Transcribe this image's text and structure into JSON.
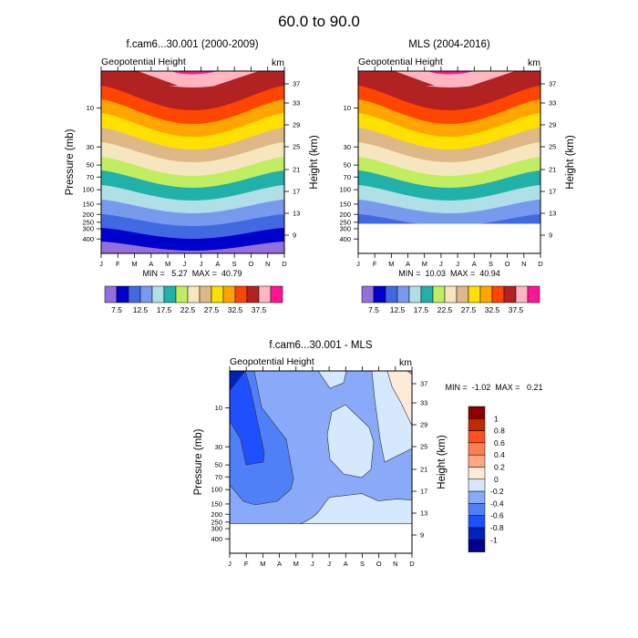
{
  "figure_title": "60.0 to  90.0",
  "chart_data": [
    {
      "type": "heatmap",
      "subtype": "filled-contour",
      "title": "f.cam6...30.001 (2000-2009)",
      "left_string": "Geopotential Height",
      "right_string": "km",
      "xlabel": "",
      "ylabel": "Pressure (mb)",
      "ylabel_right": "Height (km)",
      "x_ticks": [
        "J",
        "F",
        "M",
        "A",
        "M",
        "J",
        "J",
        "A",
        "S",
        "O",
        "N",
        "D"
      ],
      "y_ticks": [
        "10",
        "30",
        "50",
        "70",
        "100",
        "150",
        "200",
        "250",
        "300",
        "400"
      ],
      "y_ticks_right": [
        "37",
        "33",
        "29",
        "25",
        "21",
        "17",
        "13",
        "9"
      ],
      "stats": "MIN =   5.27  MAX =  40.79",
      "min": 5.27,
      "max": 40.79,
      "data_bottom_pressure": 500,
      "colorbar": {
        "colors": [
          "#9370db",
          "#0000cd",
          "#4169e1",
          "#7799ee",
          "#b0e0e6",
          "#20b2aa",
          "#c0ee60",
          "#f5e6c0",
          "#deb887",
          "#ffe000",
          "#ffa500",
          "#ff4500",
          "#b22222",
          "#ffb6c1",
          "#ff1493"
        ],
        "levels": [
          5,
          7.5,
          10,
          12.5,
          15,
          17.5,
          20,
          22.5,
          25,
          27.5,
          30,
          32.5,
          35,
          37.5,
          40
        ],
        "labels": [
          "7.5",
          "12.5",
          "17.5",
          "22.5",
          "27.5",
          "32.5",
          "37.5"
        ]
      }
    },
    {
      "type": "heatmap",
      "subtype": "filled-contour",
      "title": "MLS (2004-2016)",
      "left_string": "Geopotential Height",
      "right_string": "km",
      "xlabel": "",
      "ylabel": "",
      "ylabel_right": "Height (km)",
      "x_ticks": [
        "J",
        "F",
        "M",
        "A",
        "M",
        "J",
        "J",
        "A",
        "S",
        "O",
        "N",
        "D"
      ],
      "y_ticks": [
        "10",
        "30",
        "50",
        "70",
        "100",
        "150",
        "200",
        "250",
        "300",
        "400"
      ],
      "y_ticks_right": [
        "37",
        "33",
        "29",
        "25",
        "21",
        "17",
        "13",
        "9"
      ],
      "stats": "MIN =  10.03  MAX =  40.94",
      "min": 10.03,
      "max": 40.94,
      "data_bottom_pressure": 261,
      "colorbar": {
        "colors": [
          "#9370db",
          "#0000cd",
          "#4169e1",
          "#7799ee",
          "#b0e0e6",
          "#20b2aa",
          "#c0ee60",
          "#f5e6c0",
          "#deb887",
          "#ffe000",
          "#ffa500",
          "#ff4500",
          "#b22222",
          "#ffb6c1",
          "#ff1493"
        ],
        "levels": [
          5,
          7.5,
          10,
          12.5,
          15,
          17.5,
          20,
          22.5,
          25,
          27.5,
          30,
          32.5,
          35,
          37.5,
          40
        ],
        "labels": [
          "7.5",
          "12.5",
          "17.5",
          "22.5",
          "27.5",
          "32.5",
          "37.5"
        ]
      }
    },
    {
      "type": "heatmap",
      "subtype": "filled-contour-difference",
      "title": "f.cam6...30.001 - MLS",
      "left_string": "Geopotential Height",
      "right_string": "km",
      "xlabel": "",
      "ylabel": "Pressure (mb)",
      "ylabel_right": "Height (km)",
      "x_ticks": [
        "J",
        "F",
        "M",
        "A",
        "M",
        "J",
        "J",
        "A",
        "S",
        "O",
        "N",
        "D"
      ],
      "y_ticks": [
        "10",
        "30",
        "50",
        "70",
        "100",
        "150",
        "200",
        "250",
        "300",
        "400"
      ],
      "y_ticks_right": [
        "37",
        "33",
        "29",
        "25",
        "21",
        "17",
        "13",
        "9"
      ],
      "stats": "MIN =  -1.02  MAX =   0.21",
      "min": -1.02,
      "max": 0.21,
      "data_bottom_pressure": 261,
      "colorbar": {
        "orientation": "vertical",
        "colors": [
          "#8b0000",
          "#c02a00",
          "#ff4f20",
          "#ff7f50",
          "#ffa882",
          "#fdebd8",
          "#d6e8fb",
          "#88aaf8",
          "#5080f8",
          "#1f50ff",
          "#0022bb",
          "#00008b"
        ],
        "labels": [
          "1",
          "0.8",
          "0.6",
          "0.4",
          "0.2",
          "0",
          "-0.2",
          "-0.4",
          "-0.6",
          "-0.8",
          "-1"
        ]
      }
    }
  ]
}
